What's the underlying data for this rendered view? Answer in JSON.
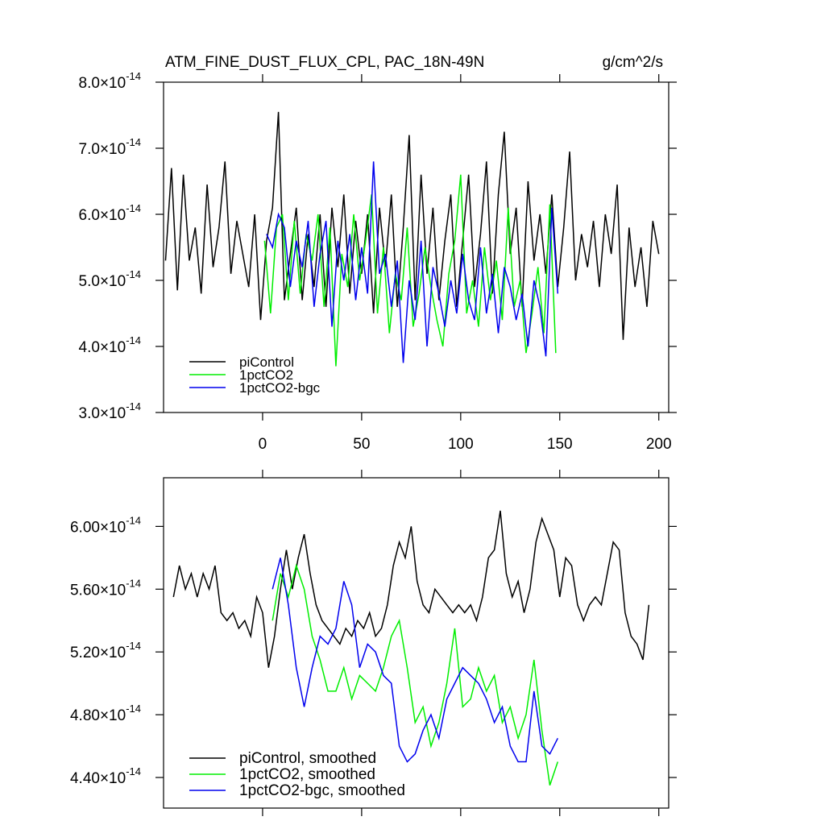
{
  "chart_data": [
    {
      "type": "line",
      "title": "ATM_FINE_DUST_FLUX_CPL, PAC_18N-49N",
      "units": "g/cm^2/s",
      "xlim": [
        -50,
        205
      ],
      "xticks": [
        0,
        50,
        100,
        150,
        200
      ],
      "xtick_labels": true,
      "ylim": [
        3e-14,
        8e-14
      ],
      "yticks": [
        {
          "value": 3e-14,
          "label": "3.0×10",
          "exponent": "-14"
        },
        {
          "value": 4e-14,
          "label": "4.0×10",
          "exponent": "-14"
        },
        {
          "value": 5e-14,
          "label": "5.0×10",
          "exponent": "-14"
        },
        {
          "value": 6e-14,
          "label": "6.0×10",
          "exponent": "-14"
        },
        {
          "value": 7e-14,
          "label": "7.0×10",
          "exponent": "-14"
        },
        {
          "value": 8e-14,
          "label": "8.0×10",
          "exponent": "-14"
        }
      ],
      "legend": "lower-left",
      "series": [
        {
          "name": "piControl",
          "color": "#000000",
          "x": [
            -49,
            -46,
            -43,
            -40,
            -37,
            -34,
            -31,
            -28,
            -25,
            -22,
            -19,
            -16,
            -13,
            -10,
            -7,
            -4,
            -1,
            2,
            5,
            8,
            11,
            14,
            17,
            20,
            23,
            26,
            29,
            32,
            35,
            38,
            41,
            44,
            47,
            50,
            53,
            56,
            59,
            62,
            65,
            68,
            71,
            74,
            77,
            80,
            83,
            86,
            89,
            92,
            95,
            98,
            101,
            104,
            107,
            110,
            113,
            116,
            119,
            122,
            125,
            128,
            131,
            134,
            137,
            140,
            143,
            146,
            149,
            152,
            155,
            158,
            161,
            164,
            167,
            170,
            173,
            176,
            179,
            182,
            185,
            188,
            191,
            194,
            197,
            200
          ],
          "values": [
            5.3e-14,
            6.7e-14,
            4.85e-14,
            6.6e-14,
            5.3e-14,
            5.8e-14,
            4.8e-14,
            6.45e-14,
            5.2e-14,
            5.8e-14,
            6.8e-14,
            5.1e-14,
            5.9e-14,
            5.4e-14,
            4.9e-14,
            6e-14,
            4.4e-14,
            5.6e-14,
            6.1e-14,
            7.55e-14,
            4.7e-14,
            5.4e-14,
            6.1e-14,
            4.7e-14,
            5.7e-14,
            4.9e-14,
            6e-14,
            4.6e-14,
            6.1e-14,
            5.2e-14,
            6.3e-14,
            4.8e-14,
            5.9e-14,
            5.1e-14,
            6e-14,
            4.5e-14,
            6.1e-14,
            5.2e-14,
            6.3e-14,
            4.6e-14,
            5.8e-14,
            7.2e-14,
            4.7e-14,
            6.6e-14,
            5.1e-14,
            6.1e-14,
            4.7e-14,
            5.6e-14,
            6.3e-14,
            4.6e-14,
            5.6e-14,
            6.6e-14,
            4.9e-14,
            5.7e-14,
            6.8e-14,
            4.8e-14,
            6.3e-14,
            7.25e-14,
            5.4e-14,
            6.1e-14,
            4.6e-14,
            6.5e-14,
            5.3e-14,
            6e-14,
            5.1e-14,
            6.3e-14,
            4.9e-14,
            5.8e-14,
            6.95e-14,
            5e-14,
            5.7e-14,
            5.2e-14,
            5.9e-14,
            4.9e-14,
            6e-14,
            5.4e-14,
            6.45e-14,
            4.1e-14,
            5.8e-14,
            4.9e-14,
            5.5e-14,
            4.6e-14,
            5.9e-14,
            5.4e-14
          ]
        },
        {
          "name": "1pctCO2",
          "color": "#00ee00",
          "x": [
            1,
            4,
            7,
            10,
            13,
            16,
            19,
            22,
            25,
            28,
            31,
            34,
            37,
            40,
            43,
            46,
            49,
            52,
            55,
            58,
            61,
            64,
            67,
            70,
            73,
            76,
            79,
            82,
            85,
            88,
            91,
            94,
            97,
            100,
            103,
            106,
            109,
            112,
            115,
            118,
            121,
            124,
            127,
            130,
            133,
            136,
            139,
            142,
            145,
            148
          ],
          "values": [
            5.6e-14,
            4.5e-14,
            5.8e-14,
            6e-14,
            4.7e-14,
            5.9e-14,
            4.8e-14,
            5.7e-14,
            5.3e-14,
            6e-14,
            4.6e-14,
            5.8e-14,
            3.7e-14,
            5.4e-14,
            4.9e-14,
            6e-14,
            5e-14,
            5.6e-14,
            6.3e-14,
            4.5e-14,
            5.5e-14,
            4.2e-14,
            5.1e-14,
            4.7e-14,
            5.8e-14,
            4.3e-14,
            4.8e-14,
            5.5e-14,
            4.9e-14,
            4.4e-14,
            4e-14,
            5.1e-14,
            5.6e-14,
            6.6e-14,
            4.5e-14,
            5e-14,
            4.3e-14,
            5.5e-14,
            4.7e-14,
            5.3e-14,
            4.4e-14,
            6.1e-14,
            4.6e-14,
            5e-14,
            3.9e-14,
            4.5e-14,
            5.2e-14,
            4.2e-14,
            6.15e-14,
            3.9e-14
          ]
        },
        {
          "name": "1pctCO2-bgc",
          "color": "#0000ee",
          "x": [
            2,
            5,
            8,
            11,
            14,
            17,
            20,
            23,
            26,
            29,
            32,
            35,
            38,
            41,
            44,
            47,
            50,
            53,
            56,
            59,
            62,
            65,
            68,
            71,
            74,
            77,
            80,
            83,
            86,
            89,
            92,
            95,
            98,
            101,
            104,
            107,
            110,
            113,
            116,
            119,
            122,
            125,
            128,
            131,
            134,
            137,
            140,
            143,
            146,
            149
          ],
          "values": [
            5.7e-14,
            5.5e-14,
            6e-14,
            5.8e-14,
            4.9e-14,
            5.6e-14,
            5.2e-14,
            5.9e-14,
            4.6e-14,
            5.4e-14,
            5.9e-14,
            4.3e-14,
            5.6e-14,
            5e-14,
            5.7e-14,
            4.7e-14,
            5.5e-14,
            4.8e-14,
            6.8e-14,
            5.1e-14,
            5.4e-14,
            4.6e-14,
            5.3e-14,
            3.75e-14,
            5e-14,
            4.4e-14,
            5.6e-14,
            4e-14,
            5.2e-14,
            4.8e-14,
            4.3e-14,
            5e-14,
            4.5e-14,
            5.4e-14,
            4.7e-14,
            4.4e-14,
            5.5e-14,
            4.5e-14,
            5.1e-14,
            4.2e-14,
            5.2e-14,
            4.9e-14,
            4.4e-14,
            4.8e-14,
            4e-14,
            5e-14,
            4.6e-14,
            3.85e-14,
            6.1e-14,
            4.8e-14
          ]
        }
      ]
    },
    {
      "type": "line",
      "xlim": [
        -50,
        205
      ],
      "xticks": [
        0,
        50,
        100,
        150,
        200
      ],
      "xtick_labels": false,
      "ylim": [
        4.205e-14,
        6.31e-14
      ],
      "yticks": [
        {
          "value": 4.4e-14,
          "label": "4.40×10",
          "exponent": "-14"
        },
        {
          "value": 4.8e-14,
          "label": "4.80×10",
          "exponent": "-14"
        },
        {
          "value": 5.2e-14,
          "label": "5.20×10",
          "exponent": "-14"
        },
        {
          "value": 5.6e-14,
          "label": "5.60×10",
          "exponent": "-14"
        },
        {
          "value": 6e-14,
          "label": "6.00×10",
          "exponent": "-14"
        }
      ],
      "legend": "lower-left",
      "series": [
        {
          "name": "piControl, smoothed",
          "color": "#000000",
          "x": [
            -45,
            -42,
            -39,
            -36,
            -33,
            -30,
            -27,
            -24,
            -21,
            -18,
            -15,
            -12,
            -9,
            -6,
            -3,
            0,
            3,
            6,
            9,
            12,
            15,
            18,
            21,
            24,
            27,
            30,
            33,
            36,
            39,
            42,
            45,
            48,
            51,
            54,
            57,
            60,
            63,
            66,
            69,
            72,
            75,
            78,
            81,
            84,
            87,
            90,
            93,
            96,
            99,
            102,
            105,
            108,
            111,
            114,
            117,
            120,
            123,
            126,
            129,
            132,
            135,
            138,
            141,
            144,
            147,
            150,
            153,
            156,
            159,
            162,
            165,
            168,
            171,
            174,
            177,
            180,
            183,
            186,
            189,
            192,
            195
          ],
          "values": [
            5.55e-14,
            5.75e-14,
            5.6e-14,
            5.7e-14,
            5.55e-14,
            5.7e-14,
            5.6e-14,
            5.75e-14,
            5.45e-14,
            5.4e-14,
            5.45e-14,
            5.35e-14,
            5.4e-14,
            5.3e-14,
            5.55e-14,
            5.45e-14,
            5.1e-14,
            5.3e-14,
            5.6e-14,
            5.85e-14,
            5.6e-14,
            5.8e-14,
            5.95e-14,
            5.7e-14,
            5.5e-14,
            5.4e-14,
            5.35e-14,
            5.3e-14,
            5.25e-14,
            5.35e-14,
            5.3e-14,
            5.4e-14,
            5.35e-14,
            5.45e-14,
            5.3e-14,
            5.35e-14,
            5.5e-14,
            5.75e-14,
            5.9e-14,
            5.8e-14,
            6e-14,
            5.65e-14,
            5.5e-14,
            5.45e-14,
            5.6e-14,
            5.55e-14,
            5.5e-14,
            5.45e-14,
            5.5e-14,
            5.45e-14,
            5.5e-14,
            5.4e-14,
            5.55e-14,
            5.8e-14,
            5.85e-14,
            6.1e-14,
            5.7e-14,
            5.55e-14,
            5.65e-14,
            5.45e-14,
            5.6e-14,
            5.9e-14,
            6.05e-14,
            5.95e-14,
            5.85e-14,
            5.55e-14,
            5.8e-14,
            5.75e-14,
            5.5e-14,
            5.4e-14,
            5.5e-14,
            5.55e-14,
            5.5e-14,
            5.7e-14,
            5.9e-14,
            5.85e-14,
            5.45e-14,
            5.3e-14,
            5.25e-14,
            5.15e-14,
            5.5e-14
          ]
        },
        {
          "name": "1pctCO2, smoothed",
          "color": "#00ee00",
          "x": [
            5,
            9,
            13,
            17,
            21,
            25,
            29,
            33,
            37,
            41,
            45,
            49,
            53,
            57,
            61,
            65,
            69,
            73,
            77,
            81,
            85,
            89,
            93,
            97,
            101,
            105,
            109,
            113,
            117,
            121,
            125,
            129,
            133,
            137,
            141,
            145,
            149
          ],
          "values": [
            5.4e-14,
            5.7e-14,
            5.55e-14,
            5.75e-14,
            5.6e-14,
            5.3e-14,
            5.15e-14,
            4.95e-14,
            4.95e-14,
            5.1e-14,
            4.9e-14,
            5.05e-14,
            5e-14,
            4.95e-14,
            5.1e-14,
            5.3e-14,
            5.4e-14,
            5.1e-14,
            4.75e-14,
            4.85e-14,
            4.6e-14,
            4.75e-14,
            5e-14,
            5.35e-14,
            4.85e-14,
            4.9e-14,
            5.1e-14,
            4.95e-14,
            5.05e-14,
            4.75e-14,
            4.85e-14,
            4.65e-14,
            4.8e-14,
            5.15e-14,
            4.7e-14,
            4.35e-14,
            4.5e-14
          ]
        },
        {
          "name": "1pctCO2-bgc, smoothed",
          "color": "#0000ee",
          "x": [
            5,
            9,
            13,
            17,
            21,
            25,
            29,
            33,
            37,
            41,
            45,
            49,
            53,
            57,
            61,
            65,
            69,
            73,
            77,
            81,
            85,
            89,
            93,
            97,
            101,
            105,
            109,
            113,
            117,
            121,
            125,
            129,
            133,
            137,
            141,
            145,
            149
          ],
          "values": [
            5.6e-14,
            5.8e-14,
            5.5e-14,
            5.1e-14,
            4.85e-14,
            5.1e-14,
            5.3e-14,
            5.25e-14,
            5.35e-14,
            5.65e-14,
            5.5e-14,
            5.1e-14,
            5.25e-14,
            5.2e-14,
            5.05e-14,
            5e-14,
            4.6e-14,
            4.5e-14,
            4.55e-14,
            4.7e-14,
            4.8e-14,
            4.65e-14,
            4.9e-14,
            5e-14,
            5.1e-14,
            5.05e-14,
            5e-14,
            4.9e-14,
            4.75e-14,
            4.85e-14,
            4.6e-14,
            4.5e-14,
            4.5e-14,
            4.95e-14,
            4.6e-14,
            4.55e-14,
            4.65e-14
          ]
        }
      ]
    }
  ]
}
